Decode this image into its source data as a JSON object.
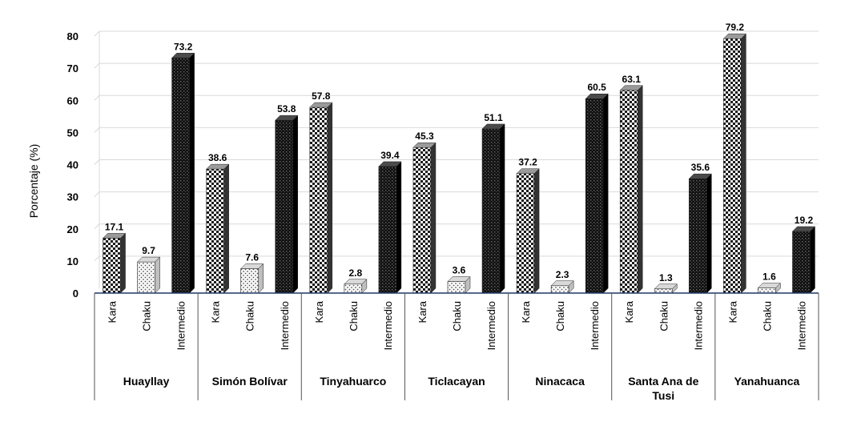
{
  "chart_data": {
    "type": "bar",
    "title": "",
    "ylabel": "Porcentaje (%)",
    "xlabel": "",
    "ylim": [
      0,
      80
    ],
    "yticks": [
      "0",
      "10",
      "20",
      "30",
      "40",
      "50",
      "60",
      "70",
      "80"
    ],
    "grid": true,
    "legend": "none",
    "groups": [
      "Huayllay",
      "Simón Bolívar",
      "Tinyahuarco",
      "Ticlacayan",
      "Ninacaca",
      "Santa Ana de Tusi",
      "Yanahuanca"
    ],
    "subcategories": [
      "Kara",
      "Chaku",
      "Intermedio"
    ],
    "series": [
      {
        "name": "Kara",
        "values": [
          17.1,
          38.6,
          57.8,
          45.3,
          37.2,
          63.1,
          79.2
        ]
      },
      {
        "name": "Chaku",
        "values": [
          9.7,
          7.6,
          2.8,
          3.6,
          2.3,
          1.3,
          1.6
        ]
      },
      {
        "name": "Intermedio",
        "values": [
          73.2,
          53.8,
          39.4,
          51.1,
          60.5,
          35.6,
          19.2
        ]
      }
    ],
    "value_labels": [
      [
        "17.1",
        "9.7",
        "73.2"
      ],
      [
        "38.6",
        "7.6",
        "53.8"
      ],
      [
        "57.8",
        "2.8",
        "39.4"
      ],
      [
        "45.3",
        "3.6",
        "51.1"
      ],
      [
        "37.2",
        "2.3",
        "60.5"
      ],
      [
        "63.1",
        "1.3",
        "35.6"
      ],
      [
        "79.2",
        "1.6",
        "19.2"
      ]
    ],
    "colors": {
      "kara": "#1a1a1a",
      "chaku": "#f2f2f2",
      "intermedio": "#141414",
      "grid": "#d9d9d9",
      "axis": "#1f3864"
    }
  }
}
